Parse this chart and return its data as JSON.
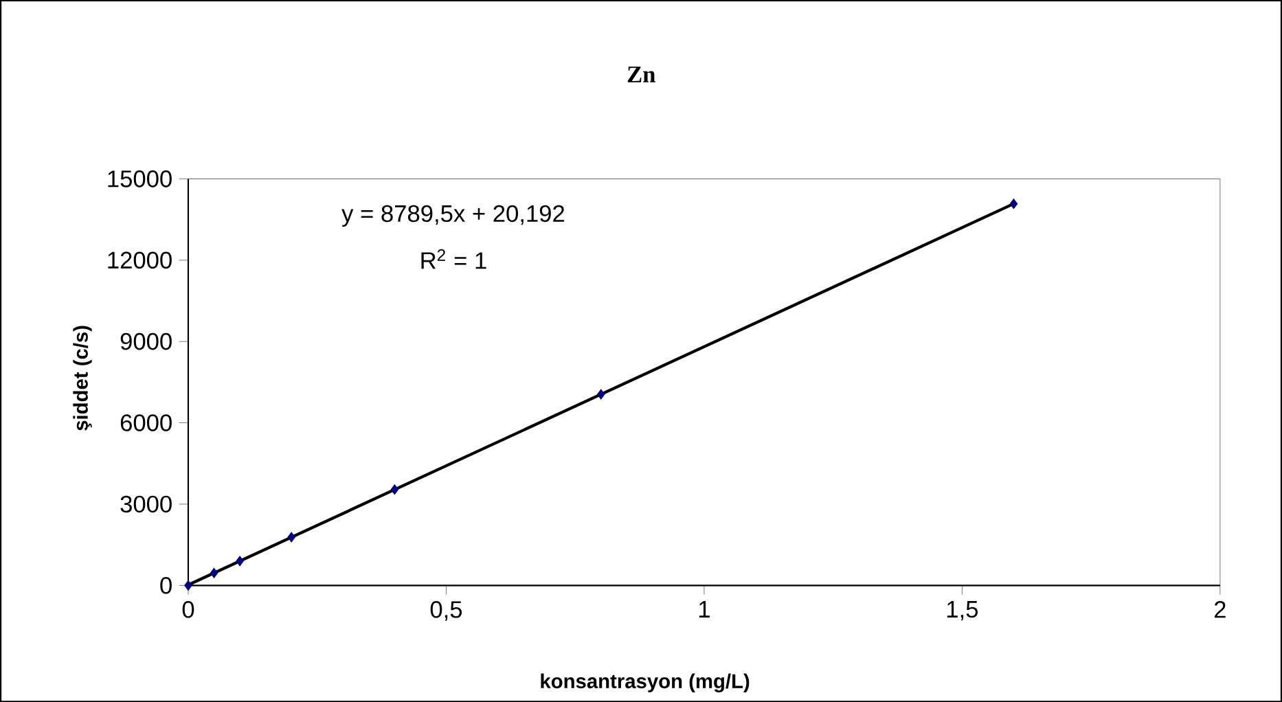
{
  "chart_data": {
    "type": "scatter",
    "title": "Zn",
    "xlabel": "konsantrasyon (mg/L)",
    "ylabel": "şiddet (c/s)",
    "annotations": [
      "y = 8789,5x + 20,192",
      "R$^{2}$ = 1"
    ],
    "xlim": [
      0,
      2
    ],
    "xticks": [
      0,
      {
        "value": 0.5,
        "label": "0,5"
      },
      1,
      {
        "value": 1.5,
        "label": "1,5"
      },
      2
    ],
    "ylim": [
      0,
      15000
    ],
    "yticks": [
      0,
      3000,
      6000,
      9000,
      12000,
      15000
    ],
    "series": [
      {
        "color": "#000080",
        "marker": "diamond",
        "x": [
          0,
          0.05,
          0.1,
          0.2,
          0.4,
          0.8,
          1.6
        ],
        "values": [
          0,
          460,
          900,
          1780,
          3540,
          7050,
          14080
        ]
      },
      {
        "type": "line",
        "color": "#000000",
        "marker": "none",
        "x": [
          0,
          1.6
        ],
        "values": [
          20,
          14080
        ]
      }
    ]
  }
}
